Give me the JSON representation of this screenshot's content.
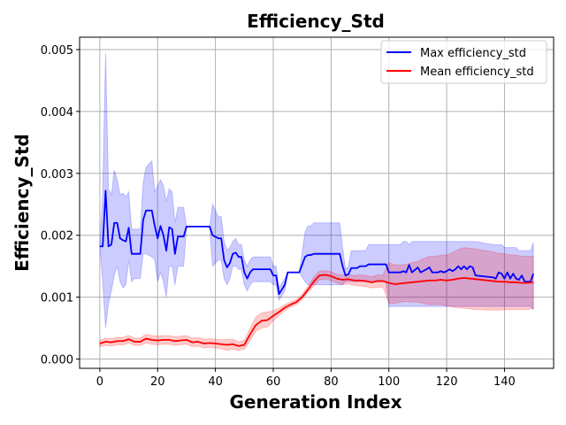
{
  "chart_data": {
    "type": "line",
    "title": "Efficiency_Std",
    "xlabel": "Generation Index",
    "ylabel": "Efficiency_Std",
    "xlim": [
      -7,
      157
    ],
    "ylim": [
      -0.00015,
      0.0052
    ],
    "x_ticks": [
      0,
      20,
      40,
      60,
      80,
      100,
      120,
      140
    ],
    "y_ticks": [
      0.0,
      0.001,
      0.002,
      0.003,
      0.004,
      0.005
    ],
    "y_tick_labels": [
      "0.000",
      "0.001",
      "0.002",
      "0.003",
      "0.004",
      "0.005"
    ],
    "grid": true,
    "legend_position": "top-right",
    "series": [
      {
        "name": "Max efficiency_std",
        "color": "#0000ff",
        "band_color": "#0000ff",
        "points": [
          [
            0,
            0.00182,
            0.00182,
            0.00182
          ],
          [
            1,
            0.00182,
            0.00125,
            0.0027
          ],
          [
            2,
            0.00272,
            0.0005,
            0.00495
          ],
          [
            3,
            0.00182,
            0.0009,
            0.00275
          ],
          [
            4,
            0.00185,
            0.0011,
            0.00265
          ],
          [
            5,
            0.0022,
            0.00135,
            0.00305
          ],
          [
            6,
            0.0022,
            0.0015,
            0.0029
          ],
          [
            7,
            0.00195,
            0.00125,
            0.00265
          ],
          [
            8,
            0.00192,
            0.00115,
            0.00268
          ],
          [
            9,
            0.0019,
            0.0012,
            0.00262
          ],
          [
            10,
            0.00212,
            0.0016,
            0.0027
          ],
          [
            11,
            0.0017,
            0.00125,
            0.0021
          ],
          [
            12,
            0.0017,
            0.0013,
            0.0021
          ],
          [
            14,
            0.0017,
            0.0013,
            0.0021
          ],
          [
            15,
            0.00225,
            0.0017,
            0.00285
          ],
          [
            16,
            0.0024,
            0.0017,
            0.0031
          ],
          [
            18,
            0.0024,
            0.00165,
            0.0032
          ],
          [
            19,
            0.00215,
            0.0016,
            0.0027
          ],
          [
            20,
            0.00195,
            0.00125,
            0.0028
          ],
          [
            21,
            0.00215,
            0.0014,
            0.0029
          ],
          [
            22,
            0.002,
            0.00125,
            0.0028
          ],
          [
            23,
            0.00175,
            0.001,
            0.00255
          ],
          [
            24,
            0.00213,
            0.0015,
            0.00275
          ],
          [
            25,
            0.0021,
            0.0015,
            0.0027
          ],
          [
            26,
            0.0017,
            0.0012,
            0.0022
          ],
          [
            27,
            0.00198,
            0.0015,
            0.00245
          ],
          [
            29,
            0.00198,
            0.0015,
            0.00245
          ],
          [
            30,
            0.00214,
            0.00214,
            0.00214
          ],
          [
            38,
            0.00214,
            0.00214,
            0.00214
          ],
          [
            39,
            0.002,
            0.0015,
            0.0025
          ],
          [
            41,
            0.00195,
            0.0016,
            0.0023
          ],
          [
            42,
            0.00195,
            0.0016,
            0.0023
          ],
          [
            43,
            0.0016,
            0.0013,
            0.0019
          ],
          [
            44,
            0.00148,
            0.0012,
            0.00176
          ],
          [
            45,
            0.00155,
            0.0013,
            0.0018
          ],
          [
            46,
            0.0017,
            0.0015,
            0.0019
          ],
          [
            47,
            0.00172,
            0.0015,
            0.00195
          ],
          [
            48,
            0.00165,
            0.00145,
            0.00185
          ],
          [
            49,
            0.00165,
            0.00145,
            0.00185
          ],
          [
            50,
            0.0014,
            0.0012,
            0.0016
          ],
          [
            51,
            0.0013,
            0.0011,
            0.0015
          ],
          [
            52,
            0.0014,
            0.0012,
            0.0016
          ],
          [
            53,
            0.00145,
            0.00125,
            0.00165
          ],
          [
            59,
            0.00145,
            0.00125,
            0.00165
          ],
          [
            60,
            0.00135,
            0.0012,
            0.0015
          ],
          [
            61,
            0.00135,
            0.0012,
            0.0015
          ],
          [
            62,
            0.00105,
            0.00095,
            0.00115
          ],
          [
            64,
            0.0012,
            0.0011,
            0.0013
          ],
          [
            65,
            0.0014,
            0.0014,
            0.0014
          ],
          [
            69,
            0.0014,
            0.0014,
            0.0014
          ],
          [
            71,
            0.00165,
            0.00125,
            0.00205
          ],
          [
            72,
            0.00168,
            0.0012,
            0.00215
          ],
          [
            73,
            0.00168,
            0.0012,
            0.00215
          ],
          [
            74,
            0.0017,
            0.0012,
            0.0022
          ],
          [
            75,
            0.0017,
            0.0012,
            0.0022
          ],
          [
            83,
            0.0017,
            0.0012,
            0.0022
          ],
          [
            84,
            0.0015,
            0.0012,
            0.0018
          ],
          [
            85,
            0.00135,
            0.00125,
            0.00145
          ],
          [
            86,
            0.00137,
            0.00125,
            0.0015
          ],
          [
            87,
            0.00147,
            0.00125,
            0.00175
          ],
          [
            88,
            0.00147,
            0.00125,
            0.00175
          ],
          [
            89,
            0.00147,
            0.00125,
            0.00175
          ],
          [
            90,
            0.0015,
            0.00125,
            0.00175
          ],
          [
            92,
            0.0015,
            0.00125,
            0.00175
          ],
          [
            93,
            0.00153,
            0.00125,
            0.00185
          ],
          [
            99,
            0.00153,
            0.00125,
            0.00185
          ],
          [
            100,
            0.0014,
            0.00085,
            0.00185
          ],
          [
            104,
            0.0014,
            0.00085,
            0.00185
          ],
          [
            105,
            0.00142,
            0.00085,
            0.0019
          ],
          [
            106,
            0.0014,
            0.00085,
            0.0019
          ],
          [
            107,
            0.00152,
            0.00085,
            0.00185
          ],
          [
            108,
            0.0014,
            0.00085,
            0.0019
          ],
          [
            110,
            0.00148,
            0.00085,
            0.0019
          ],
          [
            111,
            0.0014,
            0.00085,
            0.0019
          ],
          [
            113,
            0.00145,
            0.00085,
            0.0019
          ],
          [
            114,
            0.00148,
            0.00085,
            0.0019
          ],
          [
            115,
            0.0014,
            0.00085,
            0.0019
          ],
          [
            117,
            0.0014,
            0.00085,
            0.0019
          ],
          [
            118,
            0.00142,
            0.00085,
            0.0019
          ],
          [
            119,
            0.0014,
            0.00085,
            0.0019
          ],
          [
            120,
            0.00142,
            0.00085,
            0.0019
          ],
          [
            121,
            0.00145,
            0.00085,
            0.0019
          ],
          [
            122,
            0.00142,
            0.00085,
            0.0019
          ],
          [
            123,
            0.00145,
            0.00085,
            0.0019
          ],
          [
            124,
            0.0015,
            0.00085,
            0.0019
          ],
          [
            125,
            0.00145,
            0.00085,
            0.0019
          ],
          [
            126,
            0.0015,
            0.00085,
            0.0019
          ],
          [
            127,
            0.00145,
            0.00085,
            0.0019
          ],
          [
            128,
            0.0015,
            0.00085,
            0.0019
          ],
          [
            129,
            0.00148,
            0.00085,
            0.0019
          ],
          [
            130,
            0.00135,
            0.00085,
            0.0019
          ],
          [
            136,
            0.00132,
            0.00085,
            0.00185
          ],
          [
            137,
            0.0013,
            0.00085,
            0.00185
          ],
          [
            138,
            0.0014,
            0.00085,
            0.00185
          ],
          [
            139,
            0.00138,
            0.00085,
            0.00185
          ],
          [
            140,
            0.0013,
            0.00085,
            0.0018
          ],
          [
            141,
            0.0014,
            0.00085,
            0.0018
          ],
          [
            142,
            0.0013,
            0.00085,
            0.0018
          ],
          [
            143,
            0.00138,
            0.00085,
            0.0018
          ],
          [
            144,
            0.0013,
            0.00085,
            0.0018
          ],
          [
            145,
            0.00128,
            0.00085,
            0.00175
          ],
          [
            146,
            0.00135,
            0.00085,
            0.00175
          ],
          [
            147,
            0.00125,
            0.00085,
            0.00175
          ],
          [
            149,
            0.00125,
            0.00085,
            0.00175
          ],
          [
            150,
            0.00138,
            0.0008,
            0.00188
          ]
        ]
      },
      {
        "name": "Mean efficiency_std",
        "color": "#ff0000",
        "band_color": "#ff0000",
        "points": [
          [
            0,
            0.00025,
            0.0002,
            0.0003
          ],
          [
            2,
            0.00028,
            0.00022,
            0.00034
          ],
          [
            4,
            0.00027,
            0.00021,
            0.00033
          ],
          [
            6,
            0.00029,
            0.00023,
            0.00035
          ],
          [
            8,
            0.00029,
            0.00023,
            0.00035
          ],
          [
            10,
            0.00032,
            0.00026,
            0.00038
          ],
          [
            12,
            0.00028,
            0.00022,
            0.00034
          ],
          [
            14,
            0.00028,
            0.00022,
            0.00034
          ],
          [
            16,
            0.00033,
            0.00026,
            0.0004
          ],
          [
            18,
            0.00031,
            0.00024,
            0.00038
          ],
          [
            20,
            0.0003,
            0.00023,
            0.00037
          ],
          [
            22,
            0.00031,
            0.00024,
            0.00038
          ],
          [
            24,
            0.00031,
            0.00024,
            0.00038
          ],
          [
            26,
            0.00029,
            0.00022,
            0.00036
          ],
          [
            28,
            0.0003,
            0.00023,
            0.00037
          ],
          [
            30,
            0.00031,
            0.00024,
            0.00038
          ],
          [
            32,
            0.00027,
            0.0002,
            0.00034
          ],
          [
            34,
            0.00028,
            0.00021,
            0.00035
          ],
          [
            36,
            0.00025,
            0.00018,
            0.00032
          ],
          [
            38,
            0.00026,
            0.00019,
            0.00033
          ],
          [
            40,
            0.00025,
            0.00018,
            0.00032
          ],
          [
            42,
            0.00024,
            0.00017,
            0.00031
          ],
          [
            44,
            0.00023,
            0.00014,
            0.00032
          ],
          [
            46,
            0.00024,
            0.00016,
            0.00032
          ],
          [
            48,
            0.00021,
            0.00014,
            0.00028
          ],
          [
            50,
            0.00023,
            0.00016,
            0.0003
          ],
          [
            52,
            0.0004,
            0.0003,
            0.0005
          ],
          [
            54,
            0.00055,
            0.00045,
            0.00068
          ],
          [
            56,
            0.00062,
            0.0005,
            0.00075
          ],
          [
            58,
            0.00063,
            0.00052,
            0.00076
          ],
          [
            60,
            0.0007,
            0.00062,
            0.00078
          ],
          [
            62,
            0.00076,
            0.0007,
            0.00082
          ],
          [
            64,
            0.00083,
            0.00078,
            0.00088
          ],
          [
            66,
            0.00088,
            0.00084,
            0.00092
          ],
          [
            68,
            0.00092,
            0.00088,
            0.00096
          ],
          [
            70,
            0.001,
            0.00096,
            0.00104
          ],
          [
            72,
            0.00112,
            0.00108,
            0.00118
          ],
          [
            74,
            0.00125,
            0.00118,
            0.00132
          ],
          [
            76,
            0.00135,
            0.00128,
            0.00142
          ],
          [
            78,
            0.00136,
            0.00129,
            0.00143
          ],
          [
            80,
            0.00134,
            0.00127,
            0.00141
          ],
          [
            82,
            0.0013,
            0.00123,
            0.00137
          ],
          [
            84,
            0.00128,
            0.0012,
            0.00136
          ],
          [
            86,
            0.00129,
            0.00121,
            0.00137
          ],
          [
            88,
            0.00127,
            0.00119,
            0.00135
          ],
          [
            90,
            0.00127,
            0.00118,
            0.00136
          ],
          [
            92,
            0.00126,
            0.00117,
            0.00135
          ],
          [
            94,
            0.00124,
            0.00115,
            0.00133
          ],
          [
            96,
            0.00126,
            0.00116,
            0.00136
          ],
          [
            98,
            0.00126,
            0.00116,
            0.00136
          ],
          [
            100,
            0.00123,
            0.0009,
            0.00156
          ],
          [
            102,
            0.00121,
            0.0009,
            0.00152
          ],
          [
            104,
            0.00122,
            0.00092,
            0.00152
          ],
          [
            106,
            0.00123,
            0.00093,
            0.00153
          ],
          [
            108,
            0.00124,
            0.00092,
            0.00156
          ],
          [
            110,
            0.00125,
            0.00092,
            0.00158
          ],
          [
            112,
            0.00126,
            0.0009,
            0.00162
          ],
          [
            114,
            0.00127,
            0.00088,
            0.00166
          ],
          [
            116,
            0.00127,
            0.00088,
            0.00166
          ],
          [
            118,
            0.00128,
            0.00088,
            0.00168
          ],
          [
            120,
            0.00127,
            0.00086,
            0.00168
          ],
          [
            122,
            0.00128,
            0.00084,
            0.00172
          ],
          [
            124,
            0.0013,
            0.00083,
            0.00177
          ],
          [
            126,
            0.00131,
            0.00082,
            0.0018
          ],
          [
            128,
            0.0013,
            0.00081,
            0.00179
          ],
          [
            130,
            0.00129,
            0.0008,
            0.00178
          ],
          [
            132,
            0.00128,
            0.0008,
            0.00176
          ],
          [
            134,
            0.00127,
            0.00079,
            0.00175
          ],
          [
            136,
            0.00126,
            0.00079,
            0.00173
          ],
          [
            138,
            0.00125,
            0.00079,
            0.00171
          ],
          [
            140,
            0.00125,
            0.0008,
            0.0017
          ],
          [
            142,
            0.00124,
            0.0008,
            0.00168
          ],
          [
            144,
            0.00124,
            0.0008,
            0.00168
          ],
          [
            146,
            0.00123,
            0.0008,
            0.00166
          ],
          [
            148,
            0.00123,
            0.0008,
            0.00166
          ],
          [
            150,
            0.00124,
            0.00082,
            0.00166
          ]
        ]
      }
    ]
  }
}
